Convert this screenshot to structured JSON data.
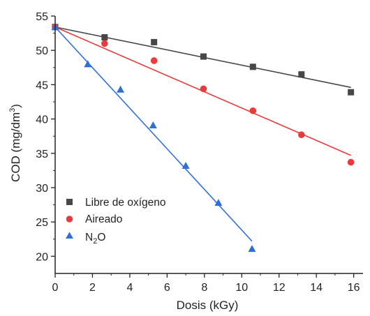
{
  "chart_data": {
    "type": "scatter",
    "xlabel": "Dosis (kGy)",
    "ylabel_main": "COD (mg/dm",
    "ylabel_sup": "3",
    "ylabel_close": ")",
    "xlim": [
      0,
      16.5
    ],
    "ylim": [
      17.5,
      55
    ],
    "xticks": [
      0,
      2,
      4,
      6,
      8,
      10,
      12,
      14,
      16
    ],
    "yticks": [
      20,
      25,
      30,
      35,
      40,
      45,
      50,
      55
    ],
    "legend_position": "bottom-left",
    "grid": false,
    "series": [
      {
        "name": "Libre de oxígeno",
        "marker": "square",
        "color": "#474747",
        "points": [
          [
            0,
            53.4
          ],
          [
            2.65,
            51.9
          ],
          [
            5.3,
            51.2
          ],
          [
            7.95,
            49.1
          ],
          [
            10.6,
            47.6
          ],
          [
            13.2,
            46.5
          ],
          [
            15.85,
            43.9
          ]
        ],
        "fit": [
          [
            0,
            53.4
          ],
          [
            15.85,
            44.6
          ]
        ]
      },
      {
        "name": "Aireado",
        "marker": "circle",
        "color": "#ea3a3a",
        "points": [
          [
            0,
            53.4
          ],
          [
            2.65,
            51.0
          ],
          [
            5.3,
            48.5
          ],
          [
            7.95,
            44.4
          ],
          [
            10.6,
            41.2
          ],
          [
            13.2,
            37.7
          ],
          [
            15.85,
            33.7
          ]
        ],
        "fit": [
          [
            0,
            53.4
          ],
          [
            15.85,
            34.7
          ]
        ]
      },
      {
        "name_main": "N",
        "name_sub": "2",
        "name_end": "O",
        "marker": "triangle",
        "color": "#2f6fd6",
        "points": [
          [
            0,
            53.4
          ],
          [
            1.75,
            48.0
          ],
          [
            3.5,
            44.3
          ],
          [
            5.25,
            39.1
          ],
          [
            7.0,
            33.2
          ],
          [
            8.75,
            27.8
          ],
          [
            10.55,
            21.1
          ]
        ],
        "fit": [
          [
            0,
            53.4
          ],
          [
            10.55,
            22.2
          ]
        ]
      }
    ]
  }
}
